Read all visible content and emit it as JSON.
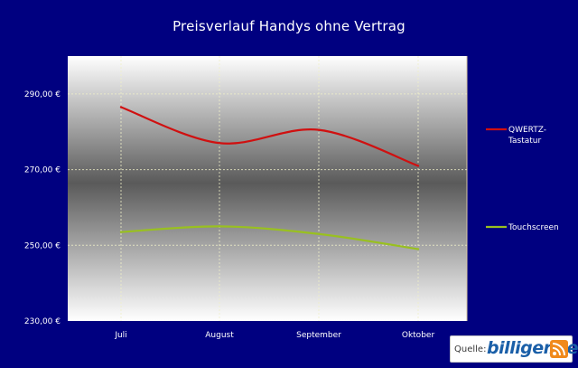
{
  "chart_data": {
    "type": "line",
    "title": "Preisverlauf Handys ohne Vertrag",
    "categories": [
      "Juli",
      "August",
      "September",
      "Oktober"
    ],
    "yticks": [
      "290,00 €",
      "270,00 €",
      "250,00 €",
      "230,00 €"
    ],
    "ylim": [
      230,
      300
    ],
    "grid": true,
    "legend_position": "right",
    "series": [
      {
        "name": "QWERTZ-\nTastatur",
        "label_lines": [
          "QWERTZ-",
          "Tastatur"
        ],
        "color": "#d01010",
        "values": [
          286.5,
          277,
          280.5,
          271
        ]
      },
      {
        "name": "Touchscreen",
        "label_lines": [
          "Touchscreen"
        ],
        "color": "#99c020",
        "values": [
          253.5,
          255,
          253,
          249
        ]
      }
    ]
  },
  "source": {
    "label": "Quelle:",
    "brand": "billiger.de"
  }
}
